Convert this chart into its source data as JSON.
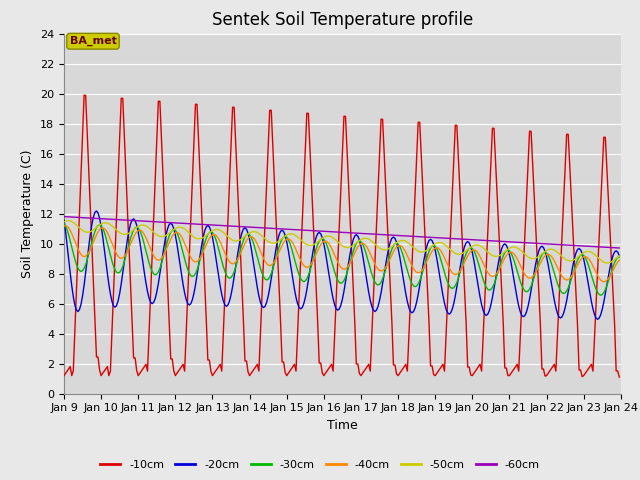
{
  "title": "Sentek Soil Temperature profile",
  "xlabel": "Time",
  "ylabel": "Soil Temperature (C)",
  "ylim": [
    0,
    24
  ],
  "yticks": [
    0,
    2,
    4,
    6,
    8,
    10,
    12,
    14,
    16,
    18,
    20,
    22,
    24
  ],
  "x_start": 9.0,
  "x_end": 24.0,
  "xtick_labels": [
    "Jan 9",
    "Jan 10",
    "Jan 11",
    "Jan 12",
    "Jan 13",
    "Jan 14",
    "Jan 15",
    "Jan 16",
    "Jan 17",
    "Jan 18",
    "Jan 19",
    "Jan 20",
    "Jan 21",
    "Jan 22",
    "Jan 23",
    "Jan 24"
  ],
  "xtick_positions": [
    9,
    10,
    11,
    12,
    13,
    14,
    15,
    16,
    17,
    18,
    19,
    20,
    21,
    22,
    23,
    24
  ],
  "series": {
    "-10cm": {
      "color": "#dd0000",
      "linewidth": 1.0
    },
    "-20cm": {
      "color": "#0000dd",
      "linewidth": 1.0
    },
    "-30cm": {
      "color": "#00bb00",
      "linewidth": 1.0
    },
    "-40cm": {
      "color": "#ff8800",
      "linewidth": 1.0
    },
    "-50cm": {
      "color": "#cccc00",
      "linewidth": 1.0
    },
    "-60cm": {
      "color": "#9900bb",
      "linewidth": 1.0
    }
  },
  "legend_label": "BA_met",
  "legend_box_facecolor": "#cccc00",
  "legend_text_color": "#660000",
  "plot_bg_color": "#d8d8d8",
  "fig_bg_color": "#e8e8e8",
  "grid_color": "#ffffff",
  "title_fontsize": 12,
  "label_fontsize": 9,
  "tick_fontsize": 8
}
